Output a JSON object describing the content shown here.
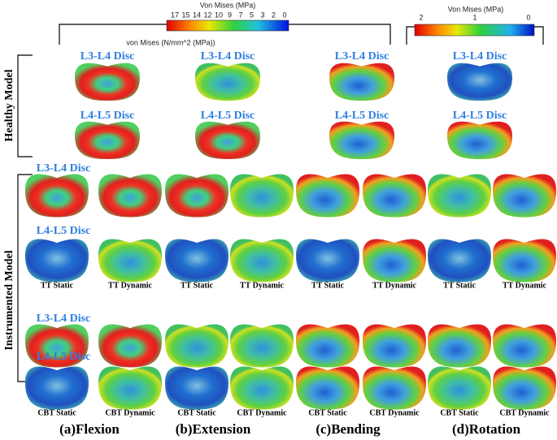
{
  "colorbar_left": {
    "title": "Von Mises (MPa)",
    "ticks": [
      "17",
      "15",
      "14",
      "12",
      "10",
      "9",
      "7",
      "5",
      "3",
      "2",
      "0"
    ],
    "unit_label": "von Mises (N/mm^2 (MPa))"
  },
  "colorbar_right": {
    "title": "Von Mises (MPa)",
    "ticks": [
      "2",
      "1",
      "0"
    ]
  },
  "healthy_model": {
    "label": "Healthy Model",
    "rows": [
      {
        "labels": [
          "L3-L4  Disc",
          "L3-L4 Disc",
          "L3-L4 Disc",
          "L3-L4 Disc"
        ]
      },
      {
        "labels": [
          "L4-L5 Disc",
          "L4-L5 Disc",
          "L4-L5 Disc",
          "L4-L5 Disc"
        ]
      }
    ]
  },
  "instrumented_model": {
    "label": "Instrumented Model",
    "rows": [
      {
        "label": "L3-L4 Disc"
      },
      {
        "label": "L4-L5 Disc",
        "conditions": [
          "TT Static",
          "TT Dynamic",
          "TT Static",
          "TT Dynamic",
          "TT Static",
          "TT Dynamic",
          "TT Static",
          "TT Dynamic"
        ]
      },
      {
        "label": "L3-L4 Disc"
      },
      {
        "label": "L4-L5 Disc",
        "conditions": [
          "CBT Static",
          "CBT Dynamic",
          "CBT Static",
          "CBT Dynamic",
          "CBT Static",
          "CBT Dynamic",
          "CBT Static",
          "CBT Dynamic"
        ]
      }
    ]
  },
  "motions": [
    "(a)Flexion",
    "(b)Extension",
    "(c)Bending",
    "(d)Rotation"
  ]
}
